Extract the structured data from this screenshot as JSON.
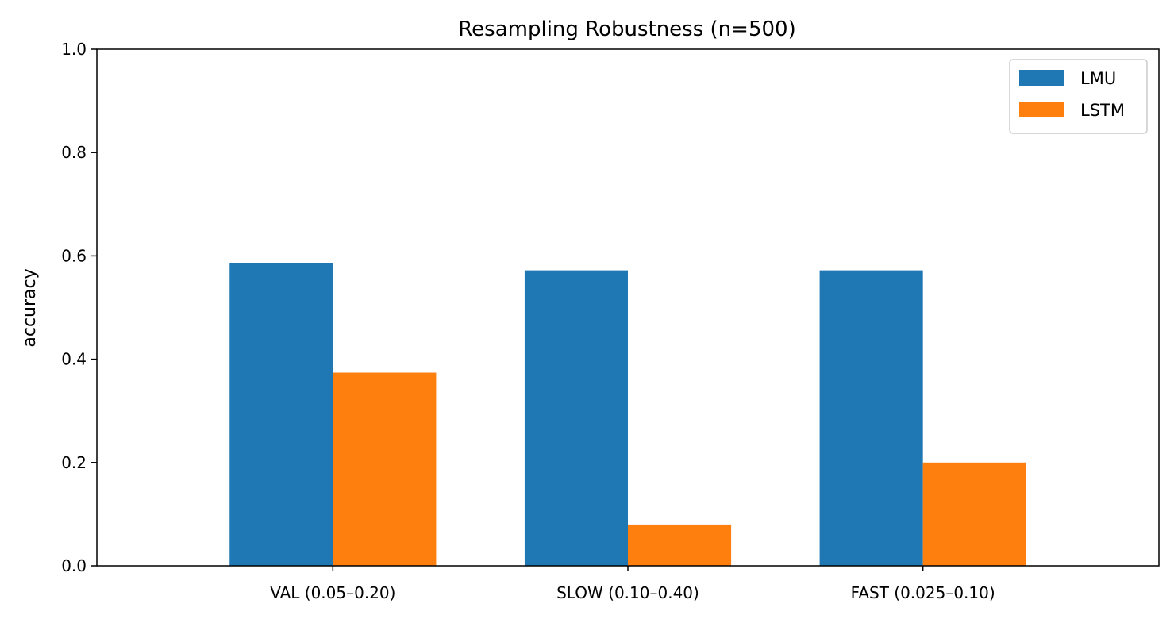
{
  "chart_data": {
    "type": "bar",
    "title": "Resampling Robustness (n=500)",
    "xlabel": "",
    "ylabel": "accuracy",
    "ylim": [
      0,
      1.0
    ],
    "yticks": [
      "0.0",
      "0.2",
      "0.4",
      "0.6",
      "0.8",
      "1.0"
    ],
    "categories": [
      "VAL (0.05–0.20)",
      "SLOW (0.10–0.40)",
      "FAST (0.025–0.10)"
    ],
    "series": [
      {
        "name": "LMU",
        "color": "#1f77b4",
        "values": [
          0.586,
          0.572,
          0.572
        ]
      },
      {
        "name": "LSTM",
        "color": "#ff7f0e",
        "values": [
          0.374,
          0.08,
          0.2
        ]
      }
    ],
    "grid": false,
    "legend": {
      "position": "top-right"
    }
  }
}
